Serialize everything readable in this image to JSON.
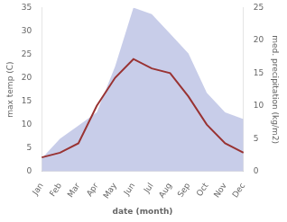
{
  "chart_data": {
    "type": "line",
    "categories": [
      "Jan",
      "Feb",
      "Mar",
      "Apr",
      "May",
      "Jun",
      "Jul",
      "Aug",
      "Sep",
      "Oct",
      "Nov",
      "Dec"
    ],
    "series": [
      {
        "type": "area",
        "color": "#b0b8e0",
        "axis": "y2",
        "values": [
          2,
          5,
          7,
          9,
          16,
          25,
          24,
          21,
          18,
          12,
          9,
          8
        ]
      },
      {
        "type": "line",
        "color": "#993333",
        "values": [
          3,
          4,
          6,
          14,
          20,
          24,
          22,
          21,
          16,
          10,
          6,
          4
        ]
      }
    ],
    "xlabel": "date (month)",
    "ylabel": "max temp (C)",
    "y2label": "med. precipitation (kg/m2)",
    "ylim": [
      0,
      35
    ],
    "yticks": [
      0,
      5,
      10,
      15,
      20,
      25,
      30,
      35
    ],
    "y2lim": [
      0,
      25
    ],
    "y2ticks": [
      0,
      5,
      10,
      15,
      20,
      25
    ],
    "grid": false
  }
}
